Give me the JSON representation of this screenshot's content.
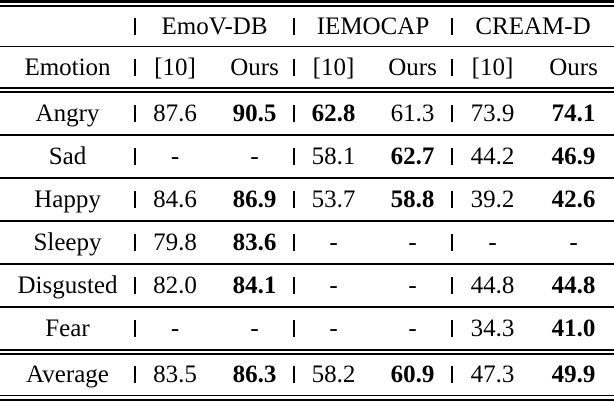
{
  "table": {
    "corner": "",
    "emotion_header": "Emotion",
    "groups": [
      {
        "label": "EmoV-DB",
        "cols": [
          "[10]",
          "Ours"
        ]
      },
      {
        "label": "IEMOCAP",
        "cols": [
          "[10]",
          "Ours"
        ]
      },
      {
        "label": "CREAM-D",
        "cols": [
          "[10]",
          "Ours"
        ]
      }
    ],
    "rows": [
      {
        "emotion": "Angry",
        "values": [
          {
            "text": "87.6",
            "bold": false
          },
          {
            "text": "90.5",
            "bold": true
          },
          {
            "text": "62.8",
            "bold": true
          },
          {
            "text": "61.3",
            "bold": false
          },
          {
            "text": "73.9",
            "bold": false
          },
          {
            "text": "74.1",
            "bold": true
          }
        ]
      },
      {
        "emotion": "Sad",
        "values": [
          {
            "text": "-",
            "bold": false
          },
          {
            "text": "-",
            "bold": false
          },
          {
            "text": "58.1",
            "bold": false
          },
          {
            "text": "62.7",
            "bold": true
          },
          {
            "text": "44.2",
            "bold": false
          },
          {
            "text": "46.9",
            "bold": true
          }
        ]
      },
      {
        "emotion": "Happy",
        "values": [
          {
            "text": "84.6",
            "bold": false
          },
          {
            "text": "86.9",
            "bold": true
          },
          {
            "text": "53.7",
            "bold": false
          },
          {
            "text": "58.8",
            "bold": true
          },
          {
            "text": "39.2",
            "bold": false
          },
          {
            "text": "42.6",
            "bold": true
          }
        ]
      },
      {
        "emotion": "Sleepy",
        "values": [
          {
            "text": "79.8",
            "bold": false
          },
          {
            "text": "83.6",
            "bold": true
          },
          {
            "text": "-",
            "bold": false
          },
          {
            "text": "-",
            "bold": false
          },
          {
            "text": "-",
            "bold": false
          },
          {
            "text": "-",
            "bold": false
          }
        ]
      },
      {
        "emotion": "Disgusted",
        "values": [
          {
            "text": "82.0",
            "bold": false
          },
          {
            "text": "84.1",
            "bold": true
          },
          {
            "text": "-",
            "bold": false
          },
          {
            "text": "-",
            "bold": false
          },
          {
            "text": "44.8",
            "bold": false
          },
          {
            "text": "44.8",
            "bold": true
          }
        ]
      },
      {
        "emotion": "Fear",
        "values": [
          {
            "text": "-",
            "bold": false
          },
          {
            "text": "-",
            "bold": false
          },
          {
            "text": "-",
            "bold": false
          },
          {
            "text": "-",
            "bold": false
          },
          {
            "text": "34.3",
            "bold": false
          },
          {
            "text": "41.0",
            "bold": true
          }
        ]
      }
    ],
    "average": {
      "emotion": "Average",
      "values": [
        {
          "text": "83.5",
          "bold": false
        },
        {
          "text": "86.3",
          "bold": true
        },
        {
          "text": "58.2",
          "bold": false
        },
        {
          "text": "60.9",
          "bold": true
        },
        {
          "text": "47.3",
          "bold": false
        },
        {
          "text": "49.9",
          "bold": true
        }
      ]
    }
  },
  "colors": {
    "background": "#ffffff",
    "text": "#000000",
    "rule": "#000000"
  }
}
